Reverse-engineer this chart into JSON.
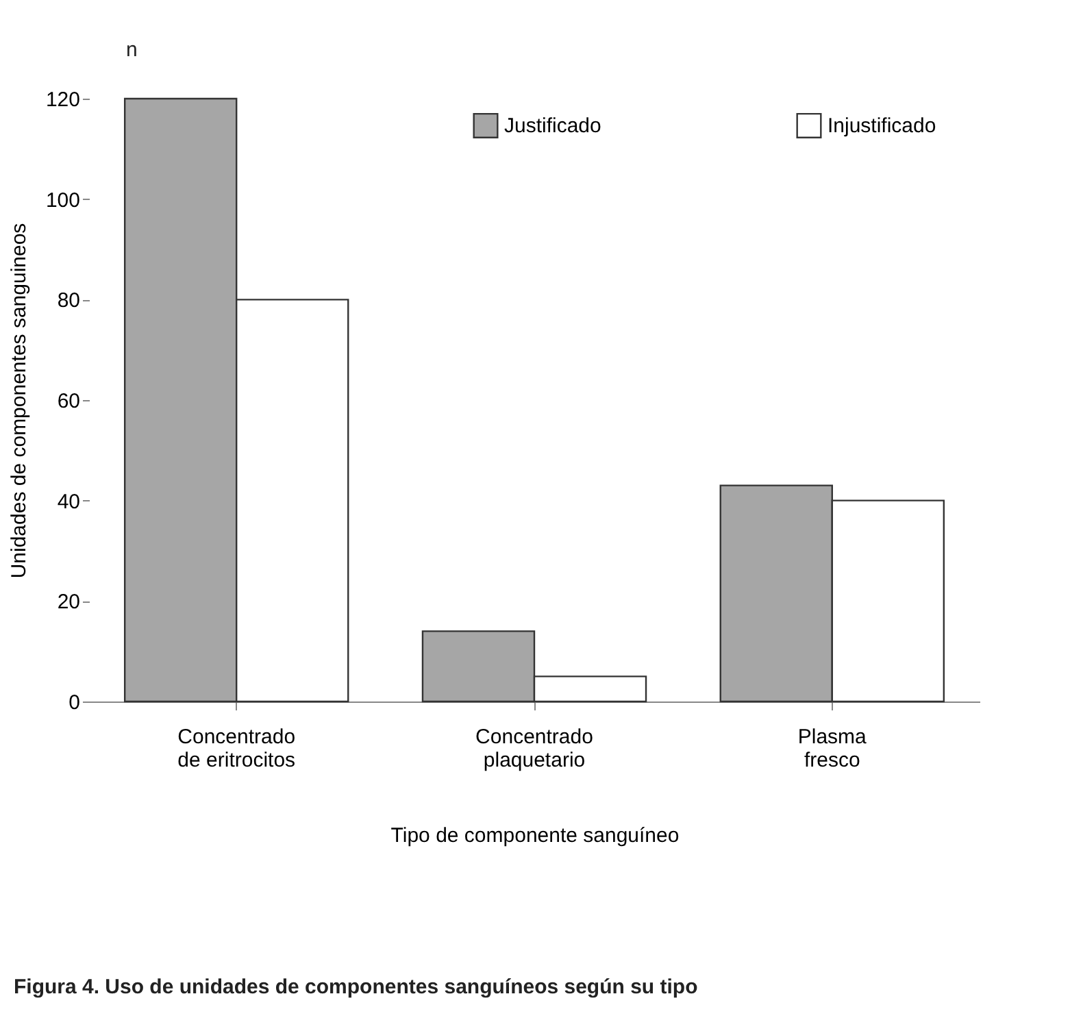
{
  "chart_data": {
    "type": "bar",
    "xlabel": "Tipo de componente sanguíneo",
    "ylabel": "Unidades de componentes sanguineos",
    "annotations": [
      "n",
      "Figura 4. Uso de unidades de componentes sanguíneos según su tipo"
    ],
    "categories": [
      "Concentrado\nde eritrocitos",
      "Concentrado\nplaquetario",
      "Plasma\nfresco"
    ],
    "series": [
      {
        "name": "Justificado",
        "color": "#a6a6a6",
        "values": [
          120,
          14,
          43
        ]
      },
      {
        "name": "Injustificado",
        "color": "#ffffff",
        "values": [
          80,
          5,
          40
        ]
      }
    ],
    "ylim": [
      0,
      120
    ],
    "yticks": [
      0,
      20,
      40,
      60,
      80,
      100,
      120
    ],
    "grid": false,
    "legend": "top"
  }
}
